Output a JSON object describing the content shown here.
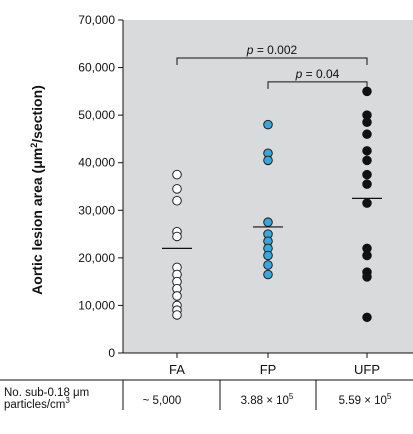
{
  "chart_data": {
    "type": "scatter",
    "categories": [
      "FA",
      "FP",
      "UFP"
    ],
    "ylabel_main": "Aortic lesion area (μm",
    "ylabel_sup": "2",
    "ylabel_tail": "/section)",
    "ylim": [
      0,
      70000
    ],
    "yticks": [
      0,
      10000,
      20000,
      30000,
      40000,
      50000,
      60000,
      70000
    ],
    "ytick_labels": [
      "0",
      "10,000",
      "20,000",
      "30,000",
      "40,000",
      "50,000",
      "60,000",
      "70,000"
    ],
    "grid": false,
    "series": [
      {
        "category": "FA",
        "fill": "#ffffff",
        "values": [
          37500,
          34500,
          32000,
          25500,
          24500,
          18000,
          16500,
          15000,
          13500,
          12000,
          10000,
          9000,
          8000
        ],
        "mean": 22000
      },
      {
        "category": "FP",
        "fill": "#3aa6dc",
        "values": [
          48000,
          42000,
          40500,
          27500,
          25000,
          23500,
          22000,
          20500,
          18500,
          16500
        ],
        "mean": 26500
      },
      {
        "category": "UFP",
        "fill": "#111111",
        "values": [
          55000,
          50000,
          48500,
          46000,
          42500,
          40500,
          37500,
          35500,
          31500,
          22000,
          20500,
          17000,
          16000,
          7500
        ],
        "mean": 32500
      }
    ],
    "annotations": [
      {
        "from": "FA",
        "to": "UFP",
        "y": 62000,
        "p_label": "p",
        "p_value": " = 0.002"
      },
      {
        "from": "FP",
        "to": "UFP",
        "y": 57000,
        "p_label": "p",
        "p_value": " = 0.04"
      }
    ]
  },
  "table": {
    "header_line1": "No. sub-0.18 μm",
    "header_line2": "particles/cm",
    "header_line2_sup": "3",
    "cells": [
      {
        "main": "~ 5,000",
        "sup": ""
      },
      {
        "main": "3.88 × 10",
        "sup": "5"
      },
      {
        "main": "5.59 × 10",
        "sup": "5"
      }
    ]
  }
}
